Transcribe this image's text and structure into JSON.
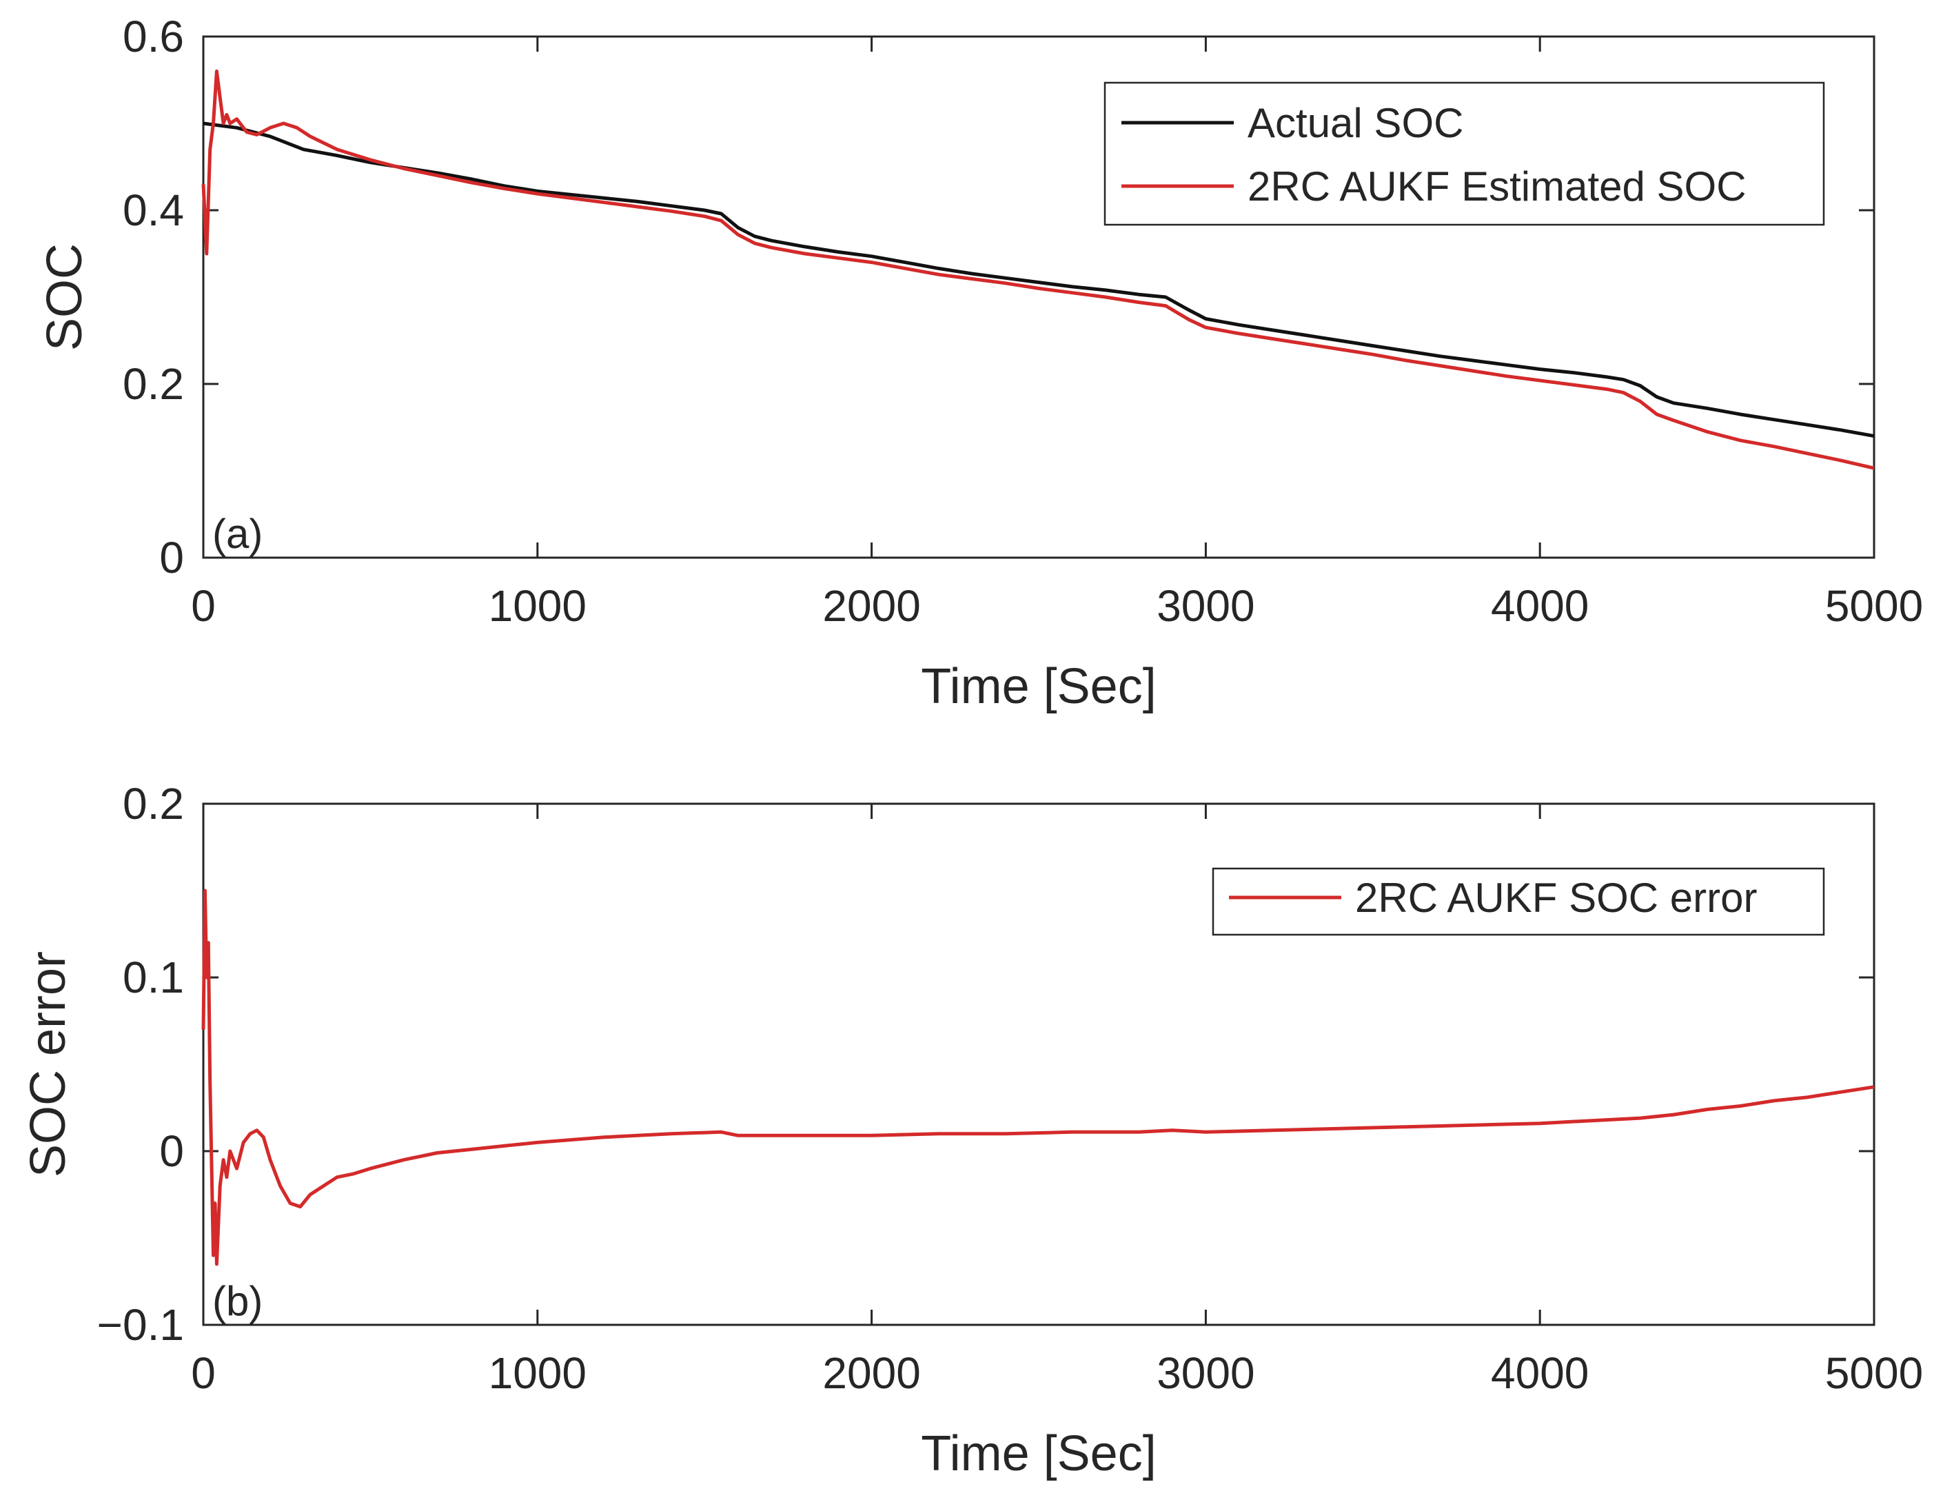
{
  "colors": {
    "actual": "#111111",
    "estimated": "#d42a2a",
    "axis": "#262626",
    "grid": "#262626"
  },
  "chart_data": [
    {
      "id": "a",
      "type": "line",
      "panel_label": "(a)",
      "xlabel": "Time [Sec]",
      "ylabel": "SOC",
      "xlim": [
        0,
        5000
      ],
      "ylim": [
        0,
        0.6
      ],
      "xticks": [
        0,
        1000,
        2000,
        3000,
        4000,
        5000
      ],
      "xtick_labels": [
        "0",
        "1000",
        "2000",
        "3000",
        "4000",
        "5000"
      ],
      "yticks": [
        0,
        0.2,
        0.4,
        0.6
      ],
      "ytick_labels": [
        "0",
        "0.2",
        "0.4",
        "0.6"
      ],
      "legend_position": "top-right",
      "series": [
        {
          "name": "Actual SOC",
          "color": "#111111",
          "x": [
            0,
            100,
            200,
            300,
            400,
            500,
            600,
            700,
            800,
            900,
            1000,
            1100,
            1200,
            1300,
            1400,
            1500,
            1550,
            1600,
            1650,
            1700,
            1800,
            1900,
            2000,
            2100,
            2200,
            2300,
            2400,
            2500,
            2600,
            2700,
            2800,
            2880,
            2950,
            3000,
            3100,
            3200,
            3300,
            3400,
            3500,
            3600,
            3700,
            3800,
            3900,
            4000,
            4100,
            4200,
            4250,
            4300,
            4350,
            4400,
            4500,
            4600,
            4700,
            4800,
            4900,
            5000
          ],
          "y": [
            0.5,
            0.495,
            0.485,
            0.47,
            0.463,
            0.455,
            0.449,
            0.443,
            0.436,
            0.428,
            0.422,
            0.418,
            0.414,
            0.41,
            0.405,
            0.4,
            0.396,
            0.38,
            0.37,
            0.365,
            0.358,
            0.352,
            0.347,
            0.34,
            0.333,
            0.327,
            0.322,
            0.317,
            0.312,
            0.308,
            0.303,
            0.3,
            0.285,
            0.275,
            0.268,
            0.262,
            0.256,
            0.25,
            0.244,
            0.238,
            0.232,
            0.227,
            0.222,
            0.217,
            0.213,
            0.208,
            0.205,
            0.198,
            0.185,
            0.178,
            0.172,
            0.165,
            0.159,
            0.153,
            0.147,
            0.14
          ]
        },
        {
          "name": "2RC AUKF Estimated SOC",
          "color": "#d42a2a",
          "x": [
            0,
            10,
            20,
            30,
            40,
            50,
            60,
            70,
            80,
            100,
            130,
            160,
            200,
            240,
            280,
            320,
            400,
            500,
            600,
            700,
            800,
            900,
            1000,
            1100,
            1200,
            1300,
            1400,
            1500,
            1550,
            1600,
            1650,
            1700,
            1800,
            1900,
            2000,
            2100,
            2200,
            2300,
            2400,
            2500,
            2600,
            2700,
            2800,
            2880,
            2950,
            3000,
            3100,
            3200,
            3300,
            3400,
            3500,
            3600,
            3700,
            3800,
            3900,
            4000,
            4100,
            4200,
            4250,
            4300,
            4350,
            4400,
            4500,
            4600,
            4700,
            4800,
            4900,
            5000
          ],
          "y": [
            0.43,
            0.35,
            0.47,
            0.5,
            0.56,
            0.53,
            0.5,
            0.51,
            0.5,
            0.505,
            0.49,
            0.487,
            0.495,
            0.5,
            0.495,
            0.485,
            0.47,
            0.458,
            0.448,
            0.44,
            0.432,
            0.425,
            0.419,
            0.414,
            0.409,
            0.404,
            0.399,
            0.393,
            0.388,
            0.372,
            0.362,
            0.357,
            0.35,
            0.345,
            0.34,
            0.333,
            0.326,
            0.321,
            0.316,
            0.31,
            0.305,
            0.3,
            0.294,
            0.29,
            0.274,
            0.265,
            0.258,
            0.252,
            0.246,
            0.24,
            0.234,
            0.227,
            0.221,
            0.215,
            0.209,
            0.204,
            0.199,
            0.194,
            0.19,
            0.18,
            0.165,
            0.158,
            0.145,
            0.135,
            0.128,
            0.12,
            0.112,
            0.103
          ]
        }
      ]
    },
    {
      "id": "b",
      "type": "line",
      "panel_label": "(b)",
      "xlabel": "Time [Sec]",
      "ylabel": "SOC error",
      "xlim": [
        0,
        5000
      ],
      "ylim": [
        -0.1,
        0.2
      ],
      "xticks": [
        0,
        1000,
        2000,
        3000,
        4000,
        5000
      ],
      "xtick_labels": [
        "0",
        "1000",
        "2000",
        "3000",
        "4000",
        "5000"
      ],
      "yticks": [
        -0.1,
        0,
        0.1,
        0.2
      ],
      "ytick_labels": [
        "−0.1",
        "0",
        "0.1",
        "0.2"
      ],
      "legend_position": "top-right",
      "series": [
        {
          "name": "2RC AUKF SOC error",
          "color": "#d42a2a",
          "x": [
            0,
            5,
            10,
            15,
            20,
            25,
            30,
            35,
            40,
            50,
            60,
            70,
            80,
            100,
            120,
            140,
            160,
            180,
            200,
            230,
            260,
            290,
            320,
            360,
            400,
            450,
            500,
            600,
            700,
            800,
            900,
            1000,
            1200,
            1400,
            1550,
            1600,
            1800,
            2000,
            2200,
            2400,
            2600,
            2800,
            2900,
            3000,
            3200,
            3400,
            3600,
            3800,
            4000,
            4200,
            4300,
            4400,
            4500,
            4600,
            4700,
            4800,
            4900,
            5000
          ],
          "y": [
            0.07,
            0.15,
            0.1,
            0.12,
            0.04,
            -0.01,
            -0.06,
            -0.03,
            -0.065,
            -0.02,
            -0.005,
            -0.015,
            0.0,
            -0.01,
            0.005,
            0.01,
            0.012,
            0.008,
            -0.005,
            -0.02,
            -0.03,
            -0.032,
            -0.025,
            -0.02,
            -0.015,
            -0.013,
            -0.01,
            -0.005,
            -0.001,
            0.001,
            0.003,
            0.005,
            0.008,
            0.01,
            0.011,
            0.009,
            0.009,
            0.009,
            0.01,
            0.01,
            0.011,
            0.011,
            0.012,
            0.011,
            0.012,
            0.013,
            0.014,
            0.015,
            0.016,
            0.018,
            0.019,
            0.021,
            0.024,
            0.026,
            0.029,
            0.031,
            0.034,
            0.037
          ]
        }
      ]
    }
  ]
}
